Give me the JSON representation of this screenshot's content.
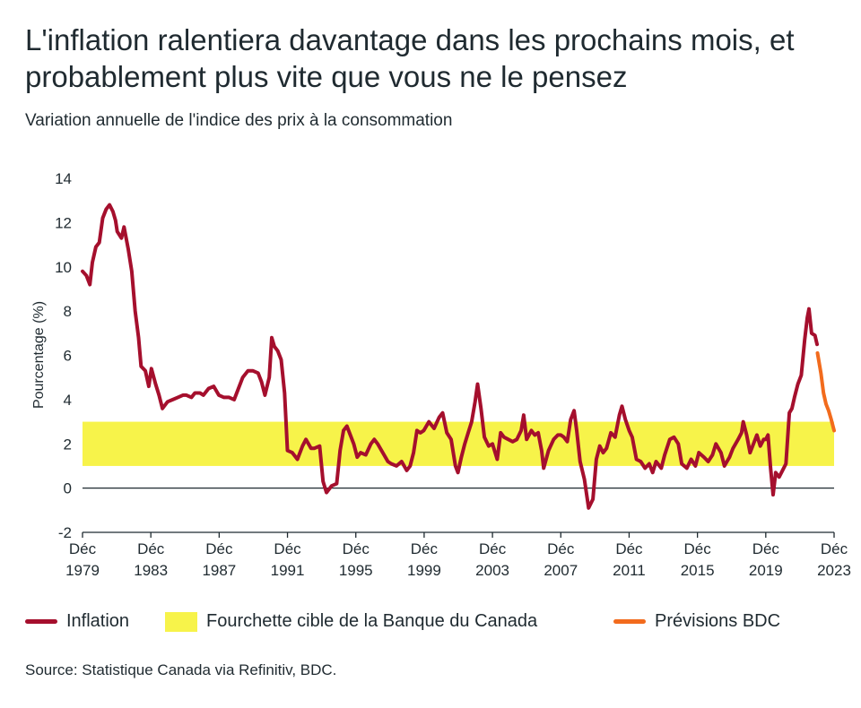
{
  "chart_data": {
    "type": "line",
    "title": "L'inflation ralentiera davantage dans les prochains mois, et probablement plus vite que vous ne le pensez",
    "subtitle": "Variation annuelle de l'indice des prix à la consommation",
    "ylabel": "Pourcentage (%)",
    "xlabel": "",
    "xlim": [
      1979.92,
      2023.92
    ],
    "ylim": [
      -2,
      14
    ],
    "yticks": [
      -2,
      0,
      2,
      4,
      6,
      8,
      10,
      12,
      14
    ],
    "xticks": [
      {
        "line1": "Déc",
        "line2": "1979",
        "value": 1979.92
      },
      {
        "line1": "Déc",
        "line2": "1983",
        "value": 1983.92
      },
      {
        "line1": "Déc",
        "line2": "1987",
        "value": 1987.92
      },
      {
        "line1": "Déc",
        "line2": "1991",
        "value": 1991.92
      },
      {
        "line1": "Déc",
        "line2": "1995",
        "value": 1995.92
      },
      {
        "line1": "Déc",
        "line2": "1999",
        "value": 1999.92
      },
      {
        "line1": "Déc",
        "line2": "2003",
        "value": 2003.92
      },
      {
        "line1": "Déc",
        "line2": "2007",
        "value": 2007.92
      },
      {
        "line1": "Déc",
        "line2": "2011",
        "value": 2011.92
      },
      {
        "line1": "Déc",
        "line2": "2015",
        "value": 2015.92
      },
      {
        "line1": "Déc",
        "line2": "2019",
        "value": 2019.92
      },
      {
        "line1": "Déc",
        "line2": "2023",
        "value": 2023.92
      }
    ],
    "target_band": {
      "name": "Fourchette cible de la Banque du Canada",
      "low": 1.0,
      "high": 3.0,
      "color": "#f7f34a"
    },
    "series": [
      {
        "name": "Inflation",
        "color": "#a50f2d",
        "points": [
          [
            1979.92,
            9.8
          ],
          [
            1980.15,
            9.6
          ],
          [
            1980.35,
            9.2
          ],
          [
            1980.5,
            10.2
          ],
          [
            1980.7,
            10.9
          ],
          [
            1980.9,
            11.1
          ],
          [
            1981.1,
            12.2
          ],
          [
            1981.3,
            12.6
          ],
          [
            1981.5,
            12.8
          ],
          [
            1981.7,
            12.5
          ],
          [
            1981.85,
            12.1
          ],
          [
            1981.95,
            11.6
          ],
          [
            1982.2,
            11.3
          ],
          [
            1982.35,
            11.8
          ],
          [
            1982.6,
            10.8
          ],
          [
            1982.8,
            9.8
          ],
          [
            1983.0,
            8.0
          ],
          [
            1983.2,
            6.8
          ],
          [
            1983.35,
            5.5
          ],
          [
            1983.6,
            5.3
          ],
          [
            1983.8,
            4.6
          ],
          [
            1983.95,
            5.4
          ],
          [
            1984.2,
            4.7
          ],
          [
            1984.4,
            4.2
          ],
          [
            1984.6,
            3.6
          ],
          [
            1984.9,
            3.9
          ],
          [
            1985.2,
            4.0
          ],
          [
            1985.5,
            4.1
          ],
          [
            1985.8,
            4.2
          ],
          [
            1986.0,
            4.2
          ],
          [
            1986.3,
            4.1
          ],
          [
            1986.5,
            4.3
          ],
          [
            1986.8,
            4.3
          ],
          [
            1987.0,
            4.2
          ],
          [
            1987.3,
            4.5
          ],
          [
            1987.6,
            4.6
          ],
          [
            1987.9,
            4.2
          ],
          [
            1988.2,
            4.1
          ],
          [
            1988.5,
            4.1
          ],
          [
            1988.8,
            4.0
          ],
          [
            1989.0,
            4.4
          ],
          [
            1989.3,
            5.0
          ],
          [
            1989.6,
            5.3
          ],
          [
            1989.9,
            5.3
          ],
          [
            1990.2,
            5.2
          ],
          [
            1990.4,
            4.8
          ],
          [
            1990.6,
            4.2
          ],
          [
            1990.85,
            5.0
          ],
          [
            1991.0,
            6.8
          ],
          [
            1991.15,
            6.4
          ],
          [
            1991.35,
            6.2
          ],
          [
            1991.55,
            5.8
          ],
          [
            1991.75,
            4.3
          ],
          [
            1991.92,
            1.7
          ],
          [
            1992.2,
            1.6
          ],
          [
            1992.5,
            1.3
          ],
          [
            1992.8,
            1.9
          ],
          [
            1993.0,
            2.2
          ],
          [
            1993.3,
            1.8
          ],
          [
            1993.5,
            1.8
          ],
          [
            1993.8,
            1.9
          ],
          [
            1994.0,
            0.3
          ],
          [
            1994.2,
            -0.2
          ],
          [
            1994.5,
            0.1
          ],
          [
            1994.8,
            0.2
          ],
          [
            1995.0,
            1.7
          ],
          [
            1995.2,
            2.6
          ],
          [
            1995.4,
            2.8
          ],
          [
            1995.6,
            2.4
          ],
          [
            1995.8,
            2.0
          ],
          [
            1996.0,
            1.4
          ],
          [
            1996.2,
            1.6
          ],
          [
            1996.5,
            1.5
          ],
          [
            1996.8,
            2.0
          ],
          [
            1997.0,
            2.2
          ],
          [
            1997.2,
            2.0
          ],
          [
            1997.5,
            1.6
          ],
          [
            1997.8,
            1.2
          ],
          [
            1998.0,
            1.1
          ],
          [
            1998.3,
            1.0
          ],
          [
            1998.6,
            1.2
          ],
          [
            1998.9,
            0.8
          ],
          [
            1999.1,
            1.0
          ],
          [
            1999.3,
            1.6
          ],
          [
            1999.5,
            2.6
          ],
          [
            1999.7,
            2.5
          ],
          [
            1999.9,
            2.6
          ],
          [
            2000.2,
            3.0
          ],
          [
            2000.5,
            2.7
          ],
          [
            2000.8,
            3.2
          ],
          [
            2001.0,
            3.4
          ],
          [
            2001.25,
            2.5
          ],
          [
            2001.5,
            2.2
          ],
          [
            2001.75,
            1.0
          ],
          [
            2001.9,
            0.7
          ],
          [
            2002.1,
            1.4
          ],
          [
            2002.3,
            2.0
          ],
          [
            2002.5,
            2.5
          ],
          [
            2002.7,
            3.0
          ],
          [
            2002.9,
            3.9
          ],
          [
            2003.05,
            4.7
          ],
          [
            2003.25,
            3.6
          ],
          [
            2003.45,
            2.3
          ],
          [
            2003.7,
            1.9
          ],
          [
            2003.92,
            2.0
          ],
          [
            2004.2,
            1.3
          ],
          [
            2004.4,
            2.5
          ],
          [
            2004.6,
            2.3
          ],
          [
            2004.85,
            2.2
          ],
          [
            2005.1,
            2.1
          ],
          [
            2005.35,
            2.2
          ],
          [
            2005.6,
            2.6
          ],
          [
            2005.75,
            3.3
          ],
          [
            2005.92,
            2.2
          ],
          [
            2006.2,
            2.6
          ],
          [
            2006.4,
            2.4
          ],
          [
            2006.6,
            2.5
          ],
          [
            2006.8,
            1.7
          ],
          [
            2006.92,
            0.9
          ],
          [
            2007.2,
            1.7
          ],
          [
            2007.5,
            2.2
          ],
          [
            2007.75,
            2.4
          ],
          [
            2007.92,
            2.4
          ],
          [
            2008.1,
            2.3
          ],
          [
            2008.3,
            2.1
          ],
          [
            2008.5,
            3.1
          ],
          [
            2008.7,
            3.5
          ],
          [
            2008.85,
            2.6
          ],
          [
            2009.05,
            1.2
          ],
          [
            2009.3,
            0.4
          ],
          [
            2009.55,
            -0.9
          ],
          [
            2009.8,
            -0.5
          ],
          [
            2010.0,
            1.3
          ],
          [
            2010.2,
            1.9
          ],
          [
            2010.4,
            1.6
          ],
          [
            2010.6,
            1.8
          ],
          [
            2010.85,
            2.5
          ],
          [
            2011.1,
            2.3
          ],
          [
            2011.35,
            3.3
          ],
          [
            2011.5,
            3.7
          ],
          [
            2011.7,
            3.1
          ],
          [
            2011.92,
            2.6
          ],
          [
            2012.1,
            2.3
          ],
          [
            2012.35,
            1.3
          ],
          [
            2012.6,
            1.2
          ],
          [
            2012.85,
            0.9
          ],
          [
            2013.1,
            1.1
          ],
          [
            2013.3,
            0.7
          ],
          [
            2013.5,
            1.2
          ],
          [
            2013.8,
            0.9
          ],
          [
            2014.0,
            1.5
          ],
          [
            2014.3,
            2.2
          ],
          [
            2014.55,
            2.3
          ],
          [
            2014.8,
            2.0
          ],
          [
            2015.0,
            1.1
          ],
          [
            2015.3,
            0.9
          ],
          [
            2015.55,
            1.3
          ],
          [
            2015.8,
            1.0
          ],
          [
            2016.0,
            1.6
          ],
          [
            2016.3,
            1.4
          ],
          [
            2016.55,
            1.2
          ],
          [
            2016.8,
            1.5
          ],
          [
            2017.0,
            2.0
          ],
          [
            2017.3,
            1.6
          ],
          [
            2017.5,
            1.0
          ],
          [
            2017.8,
            1.4
          ],
          [
            2018.0,
            1.8
          ],
          [
            2018.3,
            2.2
          ],
          [
            2018.5,
            2.5
          ],
          [
            2018.6,
            3.0
          ],
          [
            2018.8,
            2.4
          ],
          [
            2019.0,
            1.6
          ],
          [
            2019.2,
            2.0
          ],
          [
            2019.4,
            2.4
          ],
          [
            2019.6,
            1.9
          ],
          [
            2019.8,
            2.2
          ],
          [
            2019.92,
            2.2
          ],
          [
            2020.05,
            2.4
          ],
          [
            2020.2,
            0.9
          ],
          [
            2020.35,
            -0.3
          ],
          [
            2020.5,
            0.7
          ],
          [
            2020.7,
            0.5
          ],
          [
            2020.9,
            0.8
          ],
          [
            2021.1,
            1.1
          ],
          [
            2021.3,
            3.4
          ],
          [
            2021.45,
            3.6
          ],
          [
            2021.6,
            4.1
          ],
          [
            2021.8,
            4.7
          ],
          [
            2022.0,
            5.1
          ],
          [
            2022.2,
            6.7
          ],
          [
            2022.35,
            7.7
          ],
          [
            2022.45,
            8.1
          ],
          [
            2022.6,
            7.0
          ],
          [
            2022.8,
            6.9
          ],
          [
            2022.92,
            6.5
          ]
        ]
      },
      {
        "name": "Prévisions BDC",
        "color": "#f26b1d",
        "points": [
          [
            2022.95,
            6.1
          ],
          [
            2023.15,
            5.2
          ],
          [
            2023.3,
            4.3
          ],
          [
            2023.45,
            3.8
          ],
          [
            2023.6,
            3.5
          ],
          [
            2023.75,
            3.1
          ],
          [
            2023.92,
            2.6
          ]
        ]
      }
    ],
    "legend_position": "bottom",
    "grid": false
  },
  "legend": {
    "inflation": "Inflation",
    "band": "Fourchette cible de la Banque du Canada",
    "forecast": "Prévisions BDC"
  },
  "source": "Source: Statistique Canada via Refinitiv, BDC.",
  "colors": {
    "axis": "#1f2a30",
    "inflation": "#a50f2d",
    "forecast": "#f26b1d",
    "band": "#f7f34a"
  }
}
